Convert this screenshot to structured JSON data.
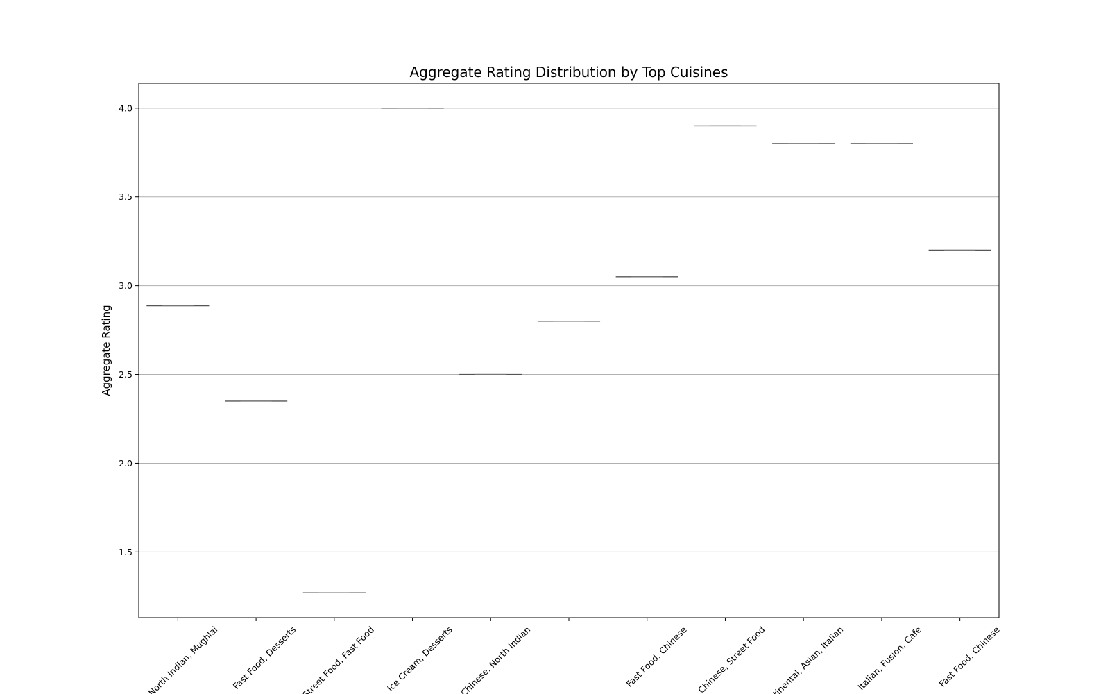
{
  "chart_data": {
    "type": "box",
    "title": "Aggregate Rating Distribution by Top Cuisines",
    "xlabel": "",
    "ylabel": "Aggregate Rating",
    "categories": [
      "North Indian, Mughlai",
      "Fast Food, Desserts",
      "Street Food, Fast Food",
      "Ice Cream, Desserts",
      "Chinese, North Indian",
      "",
      "Fast Food, Chinese",
      "Chinese, Street Food",
      "Continental, Asian, Italian",
      "Italian, Fusion, Cafe",
      "Fast Food, Chinese"
    ],
    "values": [
      2.887,
      2.35,
      1.27,
      4.0,
      2.5,
      2.8,
      3.05,
      3.9,
      3.8,
      3.8,
      3.2
    ],
    "ylim": [
      1.13,
      4.14
    ],
    "yticks": [
      "1.5",
      "2.0",
      "2.5",
      "3.0",
      "3.5",
      "4.0"
    ],
    "ytick_values": [
      1.5,
      2.0,
      2.5,
      3.0,
      3.5,
      4.0
    ],
    "grid": "y",
    "box_color": "#555555"
  }
}
